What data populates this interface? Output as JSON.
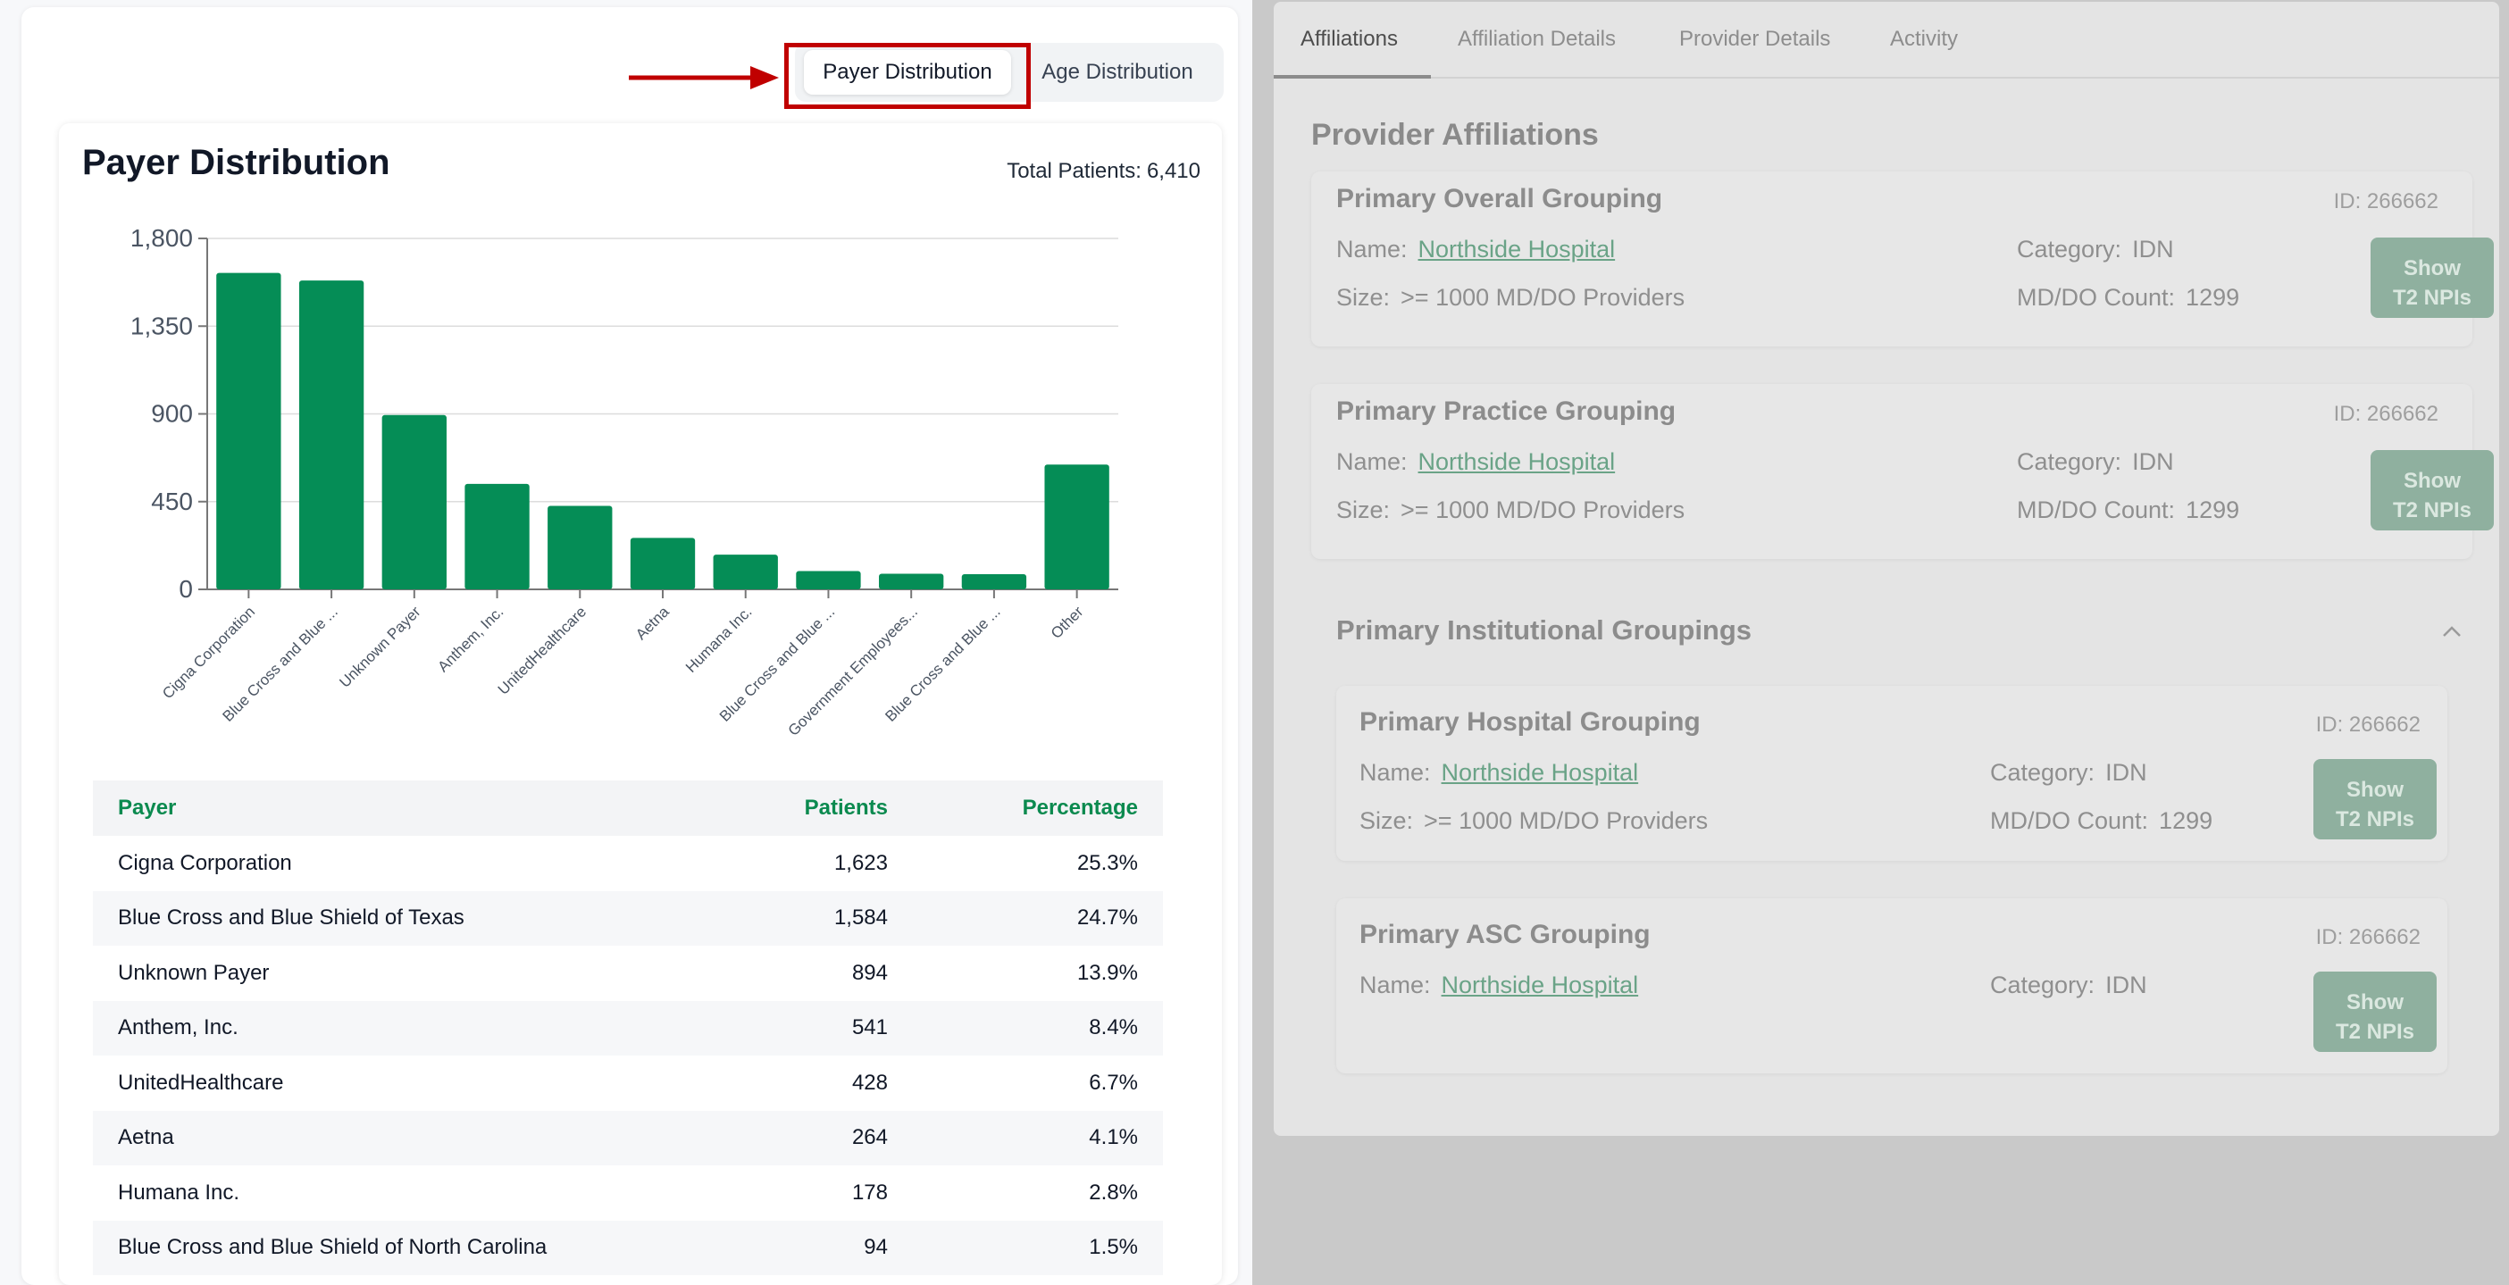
{
  "left": {
    "toggle": {
      "active_label": "Payer Distribution",
      "inactive_label": "Age Distribution"
    },
    "card": {
      "title": "Payer Distribution",
      "total_label": "Total Patients:",
      "total_value": "6,410"
    },
    "table": {
      "headers": {
        "payer": "Payer",
        "patients": "Patients",
        "percentage": "Percentage"
      },
      "rows": [
        {
          "payer": "Cigna Corporation",
          "patients": "1,623",
          "percentage": "25.3%"
        },
        {
          "payer": "Blue Cross and Blue Shield of Texas",
          "patients": "1,584",
          "percentage": "24.7%"
        },
        {
          "payer": "Unknown Payer",
          "patients": "894",
          "percentage": "13.9%"
        },
        {
          "payer": "Anthem, Inc.",
          "patients": "541",
          "percentage": "8.4%"
        },
        {
          "payer": "UnitedHealthcare",
          "patients": "428",
          "percentage": "6.7%"
        },
        {
          "payer": "Aetna",
          "patients": "264",
          "percentage": "4.1%"
        },
        {
          "payer": "Humana Inc.",
          "patients": "178",
          "percentage": "2.8%"
        },
        {
          "payer": "Blue Cross and Blue Shield of North Carolina",
          "patients": "94",
          "percentage": "1.5%"
        }
      ]
    }
  },
  "chart_data": {
    "type": "bar",
    "categories": [
      "Cigna Corporation",
      "Blue Cross and Blue ...",
      "Unknown Payer",
      "Anthem, Inc.",
      "UnitedHealthcare",
      "Aetna",
      "Humana Inc.",
      "Blue Cross and Blue ...",
      "Government Employees...",
      "Blue Cross and Blue ...",
      "Other"
    ],
    "values": [
      1623,
      1584,
      894,
      541,
      428,
      264,
      178,
      94,
      80,
      78,
      640
    ],
    "yticks": [
      "0",
      "450",
      "900",
      "1,350",
      "1,800"
    ],
    "ylim": [
      0,
      1800
    ],
    "grid": true,
    "bar_color": "#058d56"
  },
  "right": {
    "tabs": [
      "Affiliations",
      "Affiliation Details",
      "Provider Details",
      "Activity"
    ],
    "section_title": "Provider Affiliations",
    "labels": {
      "name": "Name:",
      "size": "Size:",
      "category": "Category:",
      "count": "MD/DO Count:"
    },
    "button_line1": "Show",
    "button_line2": "T2 NPIs",
    "groups": [
      {
        "title": "Primary Overall Grouping",
        "id": "ID: 266662",
        "name": "Northside Hospital",
        "size": ">= 1000 MD/DO Providers",
        "category": "IDN",
        "count": "1299"
      },
      {
        "title": "Primary Practice Grouping",
        "id": "ID: 266662",
        "name": "Northside Hospital",
        "size": ">= 1000 MD/DO Providers",
        "category": "IDN",
        "count": "1299"
      }
    ],
    "institutional": {
      "header": "Primary Institutional Groupings",
      "groups": [
        {
          "title": "Primary Hospital Grouping",
          "id": "ID: 266662",
          "name": "Northside Hospital",
          "size": ">= 1000 MD/DO Providers",
          "category": "IDN",
          "count": "1299"
        },
        {
          "title": "Primary ASC Grouping",
          "id": "ID: 266662",
          "name": "Northside Hospital",
          "category": "IDN"
        }
      ]
    },
    "colors": {
      "overlay": "#c9c9c9",
      "panel": "#e4e4e4",
      "button": "#8fb09f"
    }
  }
}
